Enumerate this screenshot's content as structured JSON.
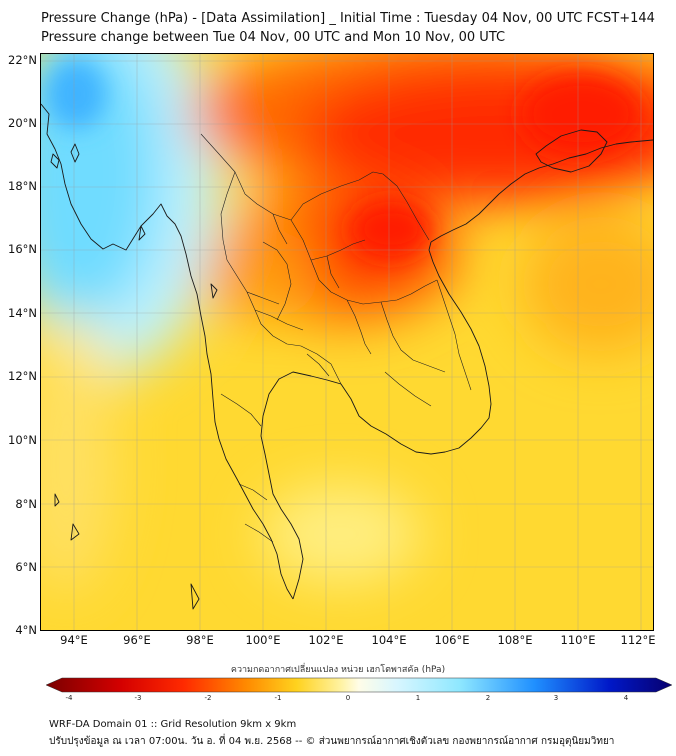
{
  "header": {
    "title_line1": "Pressure Change (hPa) - [Data Assimilation] _ Initial Time : Tuesday 04 Nov, 00 UTC FCST+144",
    "title_line2": "Pressure change between Tue 04 Nov, 00 UTC and Mon 10 Nov, 00 UTC"
  },
  "map": {
    "lat_labels": [
      "22°N",
      "20°N",
      "18°N",
      "16°N",
      "14°N",
      "12°N",
      "10°N",
      "8°N",
      "6°N",
      "4°N"
    ],
    "lon_labels": [
      "94°E",
      "96°E",
      "98°E",
      "100°E",
      "102°E",
      "104°E",
      "106°E",
      "108°E",
      "110°E",
      "112°E"
    ],
    "lat_range": [
      4,
      22.3
    ],
    "lon_range": [
      93.1,
      112.5
    ],
    "gridlines": true
  },
  "colorbar": {
    "label": "ความกดอากาศเปลี่ยนแปลง หน่วย เฮกโตพาสคัล (hPa)",
    "range": [
      -4,
      4
    ],
    "ticks": [
      "-4",
      "-3",
      "-2",
      "-1",
      "0",
      "1",
      "2",
      "3",
      "4"
    ],
    "colors": {
      "strong_negative": "#7a0000",
      "negative": "#ff2a00",
      "mild_negative": "#ffd21e",
      "near_zero": "#fff8c8",
      "mild_positive": "#8fe8ff",
      "positive": "#2090ff",
      "strong_positive": "#08006e"
    }
  },
  "footer": {
    "line1": "WRF-DA Domain 01 :: Grid Resolution 9km x 9km",
    "line2": "ปรับปรุงข้อมูล ณ เวลา 07:00น. วัน อ. ที่ 04 พ.ย. 2568 -- © ส่วนพยากรณ์อากาศเชิงตัวเลข กองพยากรณ์อากาศ กรมอุตุนิยมวิทยา"
  }
}
